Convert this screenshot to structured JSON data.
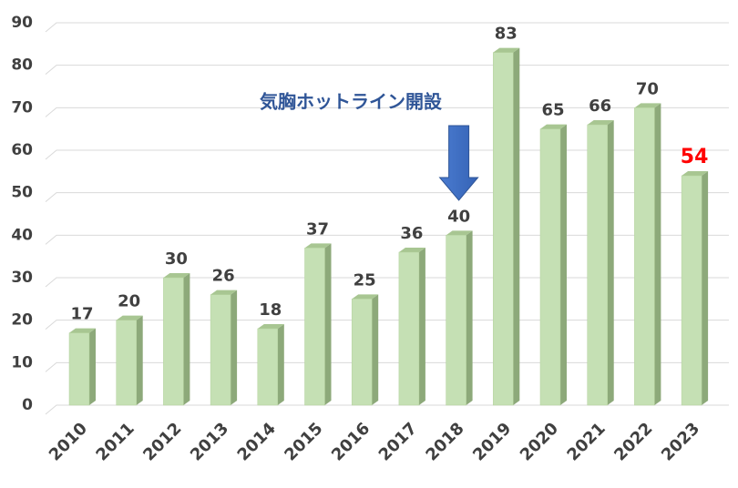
{
  "chart_data": {
    "type": "bar",
    "categories": [
      "2010",
      "2011",
      "2012",
      "2013",
      "2014",
      "2015",
      "2016",
      "2017",
      "2018",
      "2019",
      "2020",
      "2021",
      "2022",
      "2023"
    ],
    "values": [
      17,
      20,
      30,
      26,
      18,
      37,
      25,
      36,
      40,
      83,
      65,
      66,
      70,
      54
    ],
    "label_colors": [
      "#404040",
      "#404040",
      "#404040",
      "#404040",
      "#404040",
      "#404040",
      "#404040",
      "#404040",
      "#404040",
      "#404040",
      "#404040",
      "#404040",
      "#404040",
      "#ff0000"
    ],
    "color": "#c5e0b4",
    "ylim": [
      0,
      90
    ],
    "yticks": [
      0,
      10,
      20,
      30,
      40,
      50,
      60,
      70,
      80,
      90
    ],
    "grid": true,
    "annotation": "気胸ホットライン開設"
  }
}
